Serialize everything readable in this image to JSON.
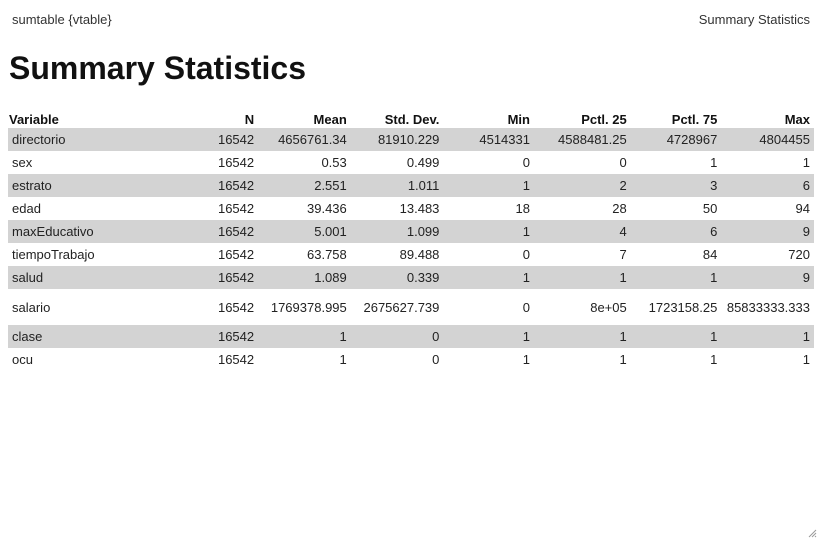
{
  "header": {
    "left_label": "sumtable {vtable}",
    "right_label": "Summary Statistics"
  },
  "title": "Summary Statistics",
  "table": {
    "columns": [
      "Variable",
      "N",
      "Mean",
      "Std. Dev.",
      "Min",
      "Pctl. 25",
      "Pctl. 75",
      "Max"
    ],
    "rows": [
      [
        "directorio",
        "16542",
        "4656761.34",
        "81910.229",
        "4514331",
        "4588481.25",
        "4728967",
        "4804455"
      ],
      [
        "sex",
        "16542",
        "0.53",
        "0.499",
        "0",
        "0",
        "1",
        "1"
      ],
      [
        "estrato",
        "16542",
        "2.551",
        "1.011",
        "1",
        "2",
        "3",
        "6"
      ],
      [
        "edad",
        "16542",
        "39.436",
        "13.483",
        "18",
        "28",
        "50",
        "94"
      ],
      [
        "maxEducativo",
        "16542",
        "5.001",
        "1.099",
        "1",
        "4",
        "6",
        "9"
      ],
      [
        "tiempoTrabajo",
        "16542",
        "63.758",
        "89.488",
        "0",
        "7",
        "84",
        "720"
      ],
      [
        "salud",
        "16542",
        "1.089",
        "0.339",
        "1",
        "1",
        "1",
        "9"
      ],
      [
        "salario",
        "16542",
        "1769378.995",
        "2675627.739",
        "0",
        "8e+05",
        "1723158.25",
        "85833333.333"
      ],
      [
        "clase",
        "16542",
        "1",
        "0",
        "1",
        "1",
        "1",
        "1"
      ],
      [
        "ocu",
        "16542",
        "1",
        "0",
        "1",
        "1",
        "1",
        "1"
      ]
    ]
  },
  "colors": {
    "row_shade": "#d3d3d3",
    "background": "#ffffff"
  },
  "icons": {
    "resize": "resize-grip-icon"
  }
}
